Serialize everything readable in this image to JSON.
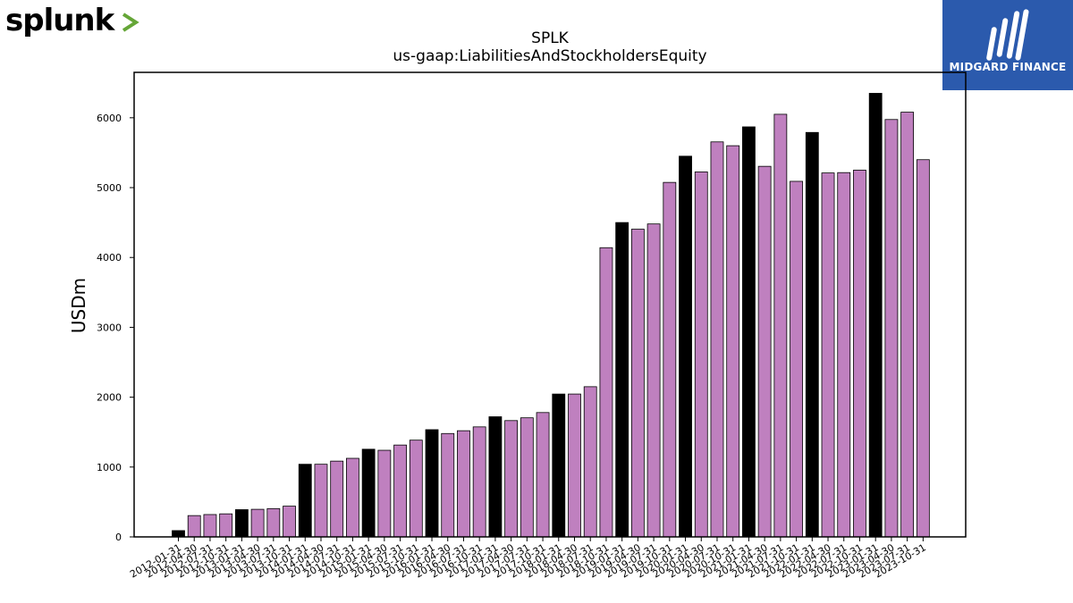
{
  "logos": {
    "left_brand": "splunk>",
    "right_brand": "MIDGARD FINANCE"
  },
  "colors": {
    "annual_bar": "#000000",
    "quarter_bar": "#bf80bf",
    "logo_bg": "#2b5aad",
    "splunk_chevron": "#65a637"
  },
  "chart_data": {
    "type": "bar",
    "title": "SPLK",
    "subtitle": "us-gaap:LiabilitiesAndStockholdersEquity",
    "xlabel": "",
    "ylabel": "USDm",
    "ylim": [
      0,
      6650
    ],
    "yticks": [
      0,
      1000,
      2000,
      3000,
      4000,
      5000,
      6000
    ],
    "grid": false,
    "categories": [
      "2012-01-31",
      "2012-04-30",
      "2012-07-31",
      "2012-10-31",
      "2013-01-31",
      "2013-04-30",
      "2013-07-31",
      "2013-10-31",
      "2014-01-31",
      "2014-04-30",
      "2014-07-31",
      "2014-10-31",
      "2015-01-31",
      "2015-04-30",
      "2015-07-31",
      "2015-10-31",
      "2016-01-31",
      "2016-04-30",
      "2016-07-31",
      "2016-10-31",
      "2017-01-31",
      "2017-04-30",
      "2017-07-31",
      "2017-10-31",
      "2018-01-31",
      "2018-04-30",
      "2018-07-31",
      "2018-10-31",
      "2019-01-31",
      "2019-04-30",
      "2019-07-31",
      "2019-10-31",
      "2020-01-31",
      "2020-04-30",
      "2020-07-31",
      "2020-10-31",
      "2021-01-31",
      "2021-04-30",
      "2021-07-31",
      "2021-10-31",
      "2022-01-31",
      "2022-04-30",
      "2022-07-31",
      "2022-10-31",
      "2023-01-31",
      "2023-04-30",
      "2023-07-31",
      "2023-10-31"
    ],
    "values": [
      90,
      305,
      320,
      330,
      390,
      395,
      405,
      440,
      1040,
      1040,
      1085,
      1125,
      1255,
      1240,
      1315,
      1385,
      1535,
      1480,
      1520,
      1575,
      1720,
      1665,
      1705,
      1780,
      2045,
      2045,
      2150,
      4140,
      4500,
      4405,
      4480,
      5075,
      5450,
      5225,
      5655,
      5600,
      5870,
      5305,
      6050,
      5090,
      5790,
      5210,
      5215,
      5250,
      6350,
      5975,
      6080,
      5400
    ],
    "annual_flags": [
      1,
      0,
      0,
      0,
      1,
      0,
      0,
      0,
      1,
      0,
      0,
      0,
      1,
      0,
      0,
      0,
      1,
      0,
      0,
      0,
      1,
      0,
      0,
      0,
      1,
      0,
      0,
      0,
      1,
      0,
      0,
      0,
      1,
      0,
      0,
      0,
      1,
      0,
      0,
      0,
      1,
      0,
      0,
      0,
      1,
      0,
      0,
      0
    ]
  }
}
